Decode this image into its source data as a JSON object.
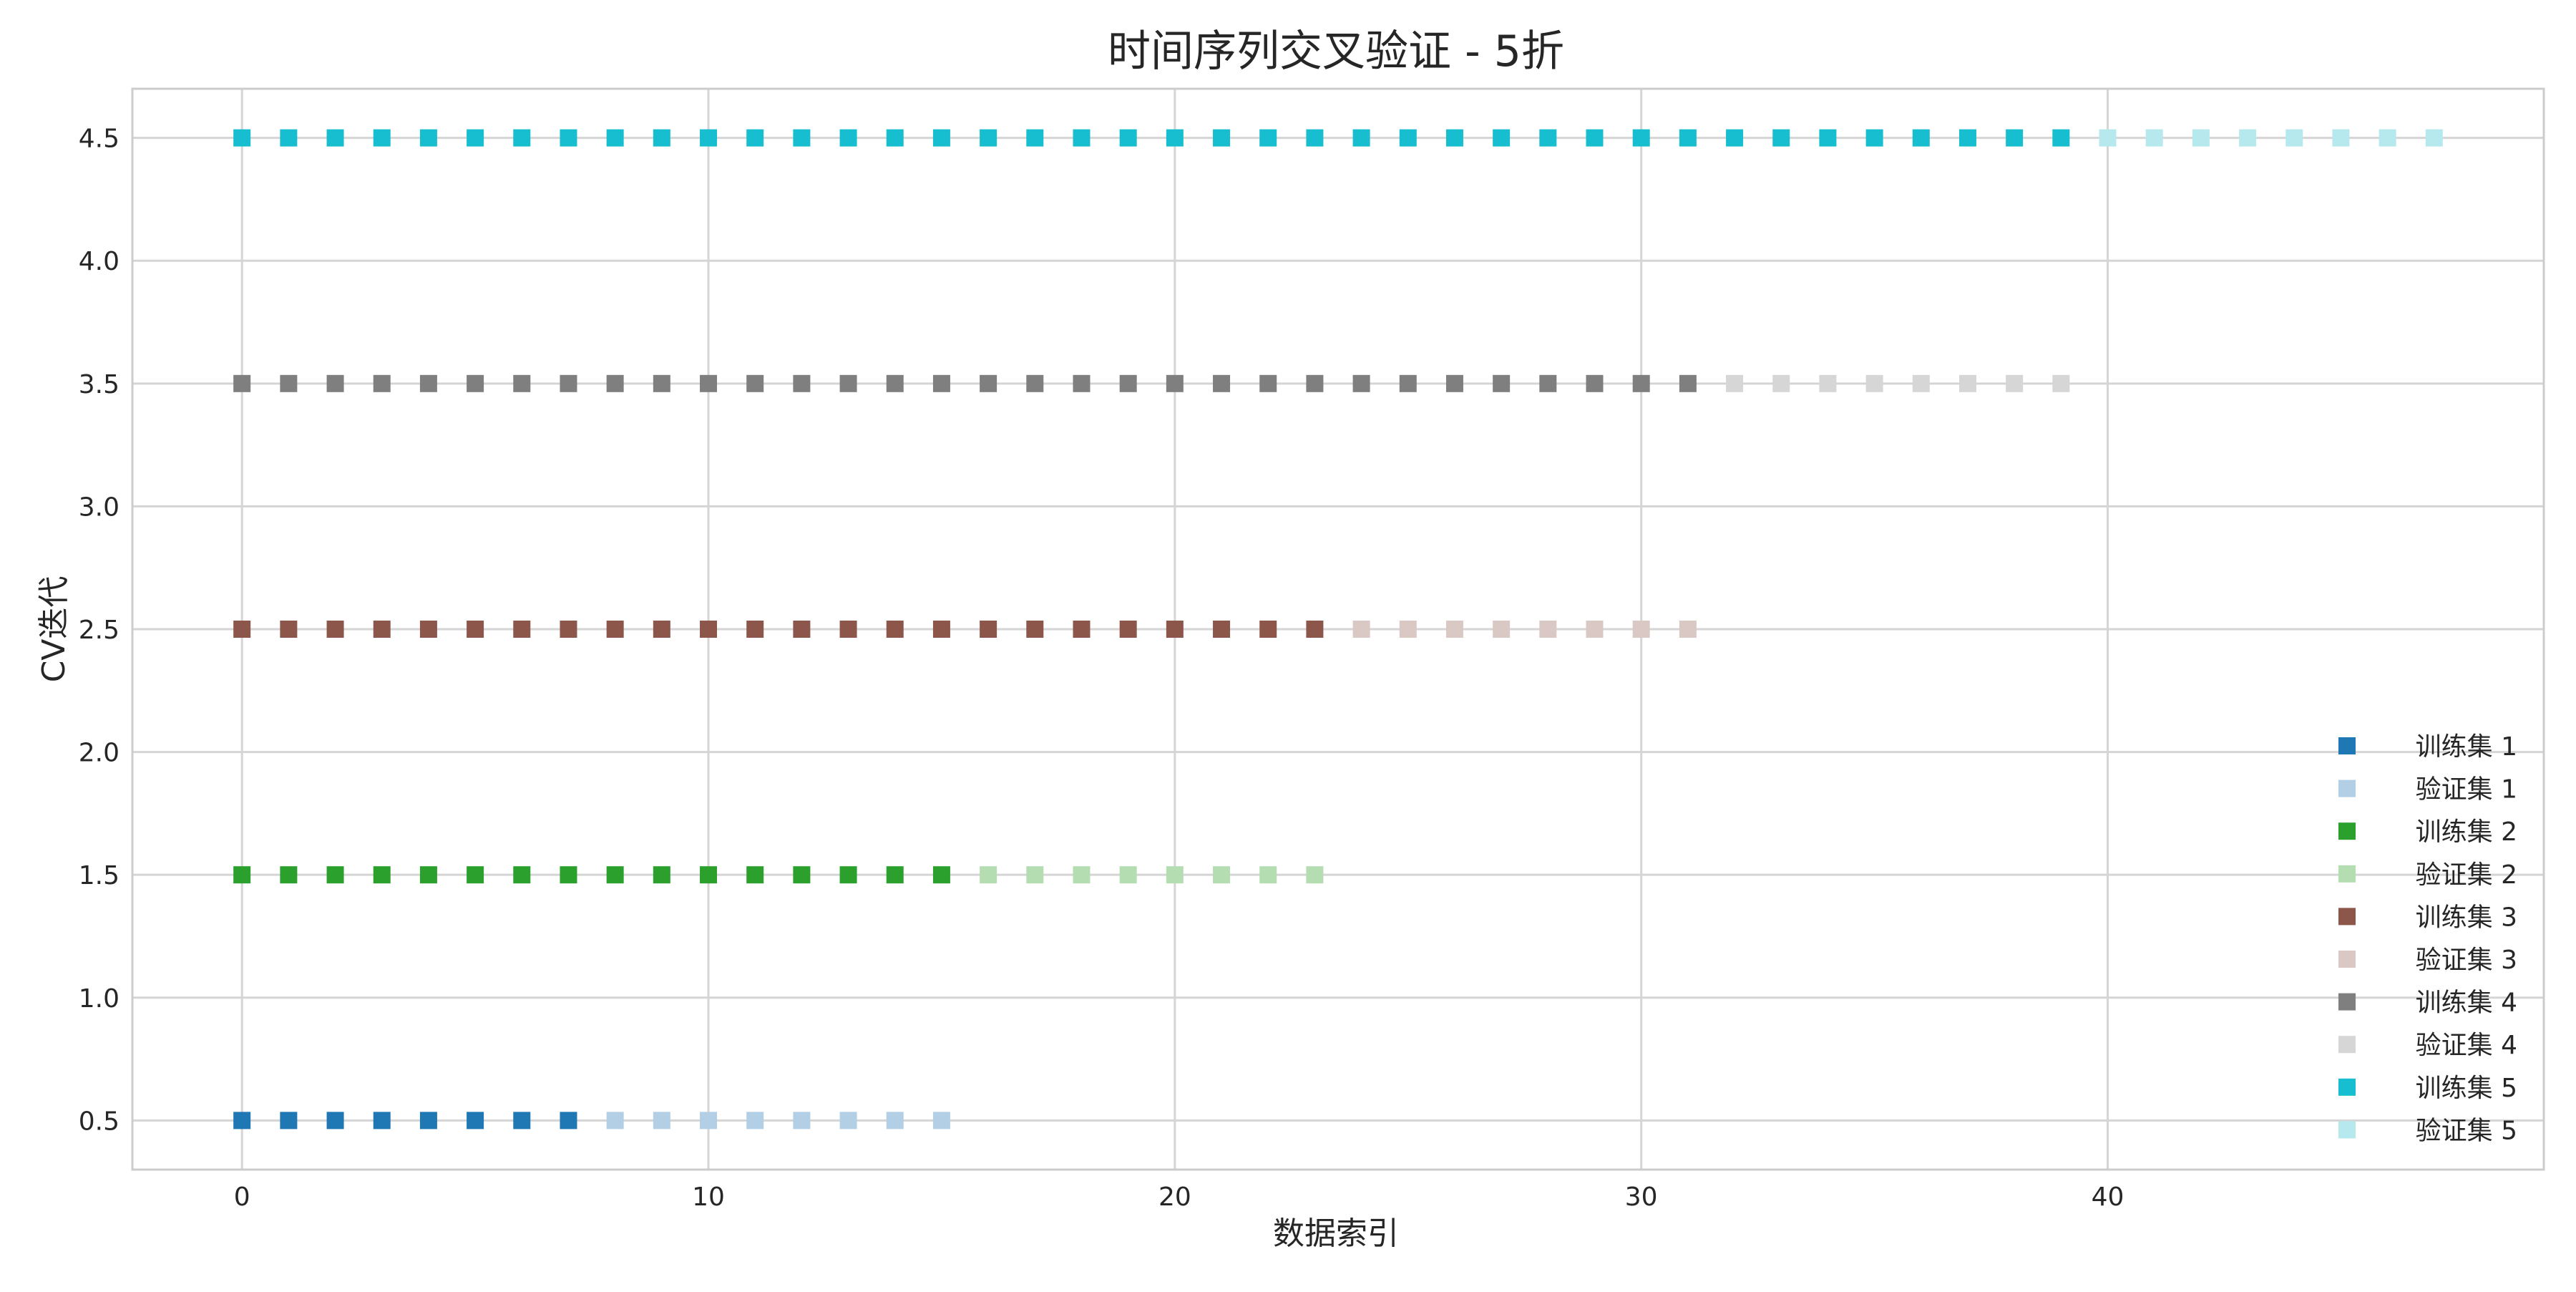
{
  "chart_data": {
    "type": "scatter",
    "title": "时间序列交叉验证 - 5折",
    "xlabel": "数据索引",
    "ylabel": "CV迭代",
    "xlim": [
      -2.35,
      49.35
    ],
    "ylim": [
      0.3,
      4.7
    ],
    "xticks": [
      0,
      10,
      20,
      30,
      40
    ],
    "yticks": [
      0.5,
      1.0,
      1.5,
      2.0,
      2.5,
      3.0,
      3.5,
      4.0,
      4.5
    ],
    "ytick_labels": [
      "0.5",
      "1.0",
      "1.5",
      "2.0",
      "2.5",
      "3.0",
      "3.5",
      "4.0",
      "4.5"
    ],
    "grid": true,
    "marker": "square",
    "legend_position": "lower-right",
    "series": [
      {
        "name": "训练集 1",
        "y": 0.5,
        "x_start": 0,
        "x_end": 7,
        "color": "#1f77b4"
      },
      {
        "name": "验证集 1",
        "y": 0.5,
        "x_start": 8,
        "x_end": 15,
        "color": "#b2cfe6"
      },
      {
        "name": "训练集 2",
        "y": 1.5,
        "x_start": 0,
        "x_end": 15,
        "color": "#2ca02c"
      },
      {
        "name": "验证集 2",
        "y": 1.5,
        "x_start": 16,
        "x_end": 23,
        "color": "#b5ddb2"
      },
      {
        "name": "训练集 3",
        "y": 2.5,
        "x_start": 0,
        "x_end": 23,
        "color": "#8c564b"
      },
      {
        "name": "验证集 3",
        "y": 2.5,
        "x_start": 24,
        "x_end": 31,
        "color": "#dac8c4"
      },
      {
        "name": "训练集 4",
        "y": 3.5,
        "x_start": 0,
        "x_end": 31,
        "color": "#7f7f7f"
      },
      {
        "name": "验证集 4",
        "y": 3.5,
        "x_start": 32,
        "x_end": 39,
        "color": "#d6d6d6"
      },
      {
        "name": "训练集 5",
        "y": 4.5,
        "x_start": 0,
        "x_end": 39,
        "color": "#17becf"
      },
      {
        "name": "验证集 5",
        "y": 4.5,
        "x_start": 40,
        "x_end": 47,
        "color": "#b6e9ee"
      }
    ]
  }
}
